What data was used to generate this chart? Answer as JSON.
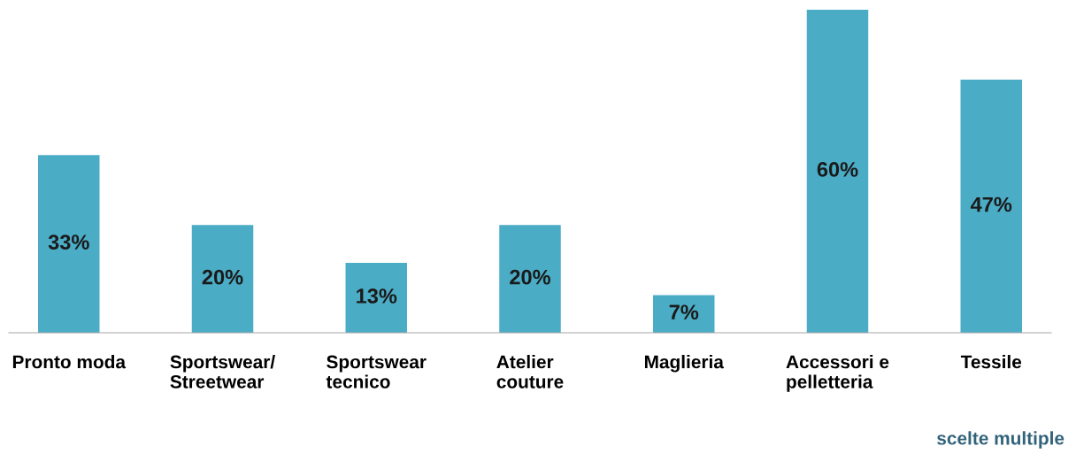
{
  "chart_data": {
    "type": "bar",
    "categories": [
      "Pronto moda",
      "Sportswear/\nStreetwear",
      "Sportswear\ntecnico",
      "Atelier\ncouture",
      "Maglieria",
      "Accessori e\npelletteria",
      "Tessile"
    ],
    "values": [
      33,
      20,
      13,
      20,
      7,
      60,
      47
    ],
    "value_labels": [
      "33%",
      "20%",
      "13%",
      "20%",
      "7%",
      "60%",
      "47%"
    ],
    "color": "#4bacc6",
    "annotations": [
      "scelte multiple"
    ],
    "grid": false,
    "legend": false
  }
}
